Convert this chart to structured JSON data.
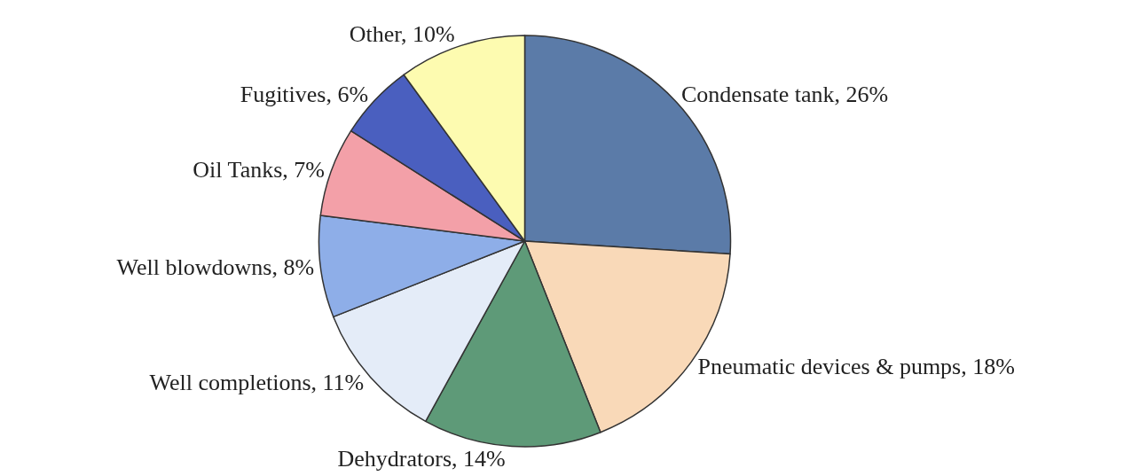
{
  "chart_data": {
    "type": "pie",
    "categories": [
      "Condensate tank",
      "Pneumatic devices & pumps",
      "Dehydrators",
      "Well completions",
      "Well blowdowns",
      "Oil Tanks",
      "Fugitives",
      "Other"
    ],
    "values": [
      26,
      18,
      14,
      11,
      8,
      7,
      6,
      10
    ],
    "value_labels": [
      "26%",
      "18%",
      "14%",
      "11%",
      "8%",
      "7%",
      "6%",
      "10%"
    ],
    "colors": [
      "#5b7ba8",
      "#f9d9b8",
      "#5e9a78",
      "#e4ecf8",
      "#8eaee8",
      "#f3a0a8",
      "#4a5fbf",
      "#fdfbb0"
    ],
    "legend": false
  }
}
